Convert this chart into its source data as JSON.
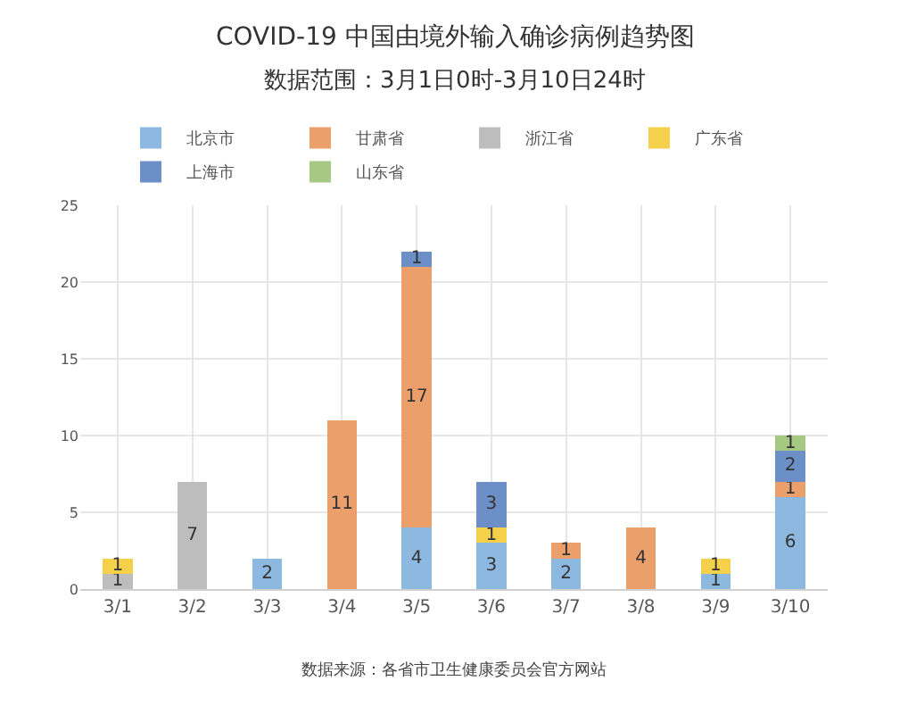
{
  "chart_data": {
    "type": "bar",
    "stacked": true,
    "title": "COVID-19 中国由境外输入确诊病例趋势图",
    "subtitle": "数据范围：3月1日0时-3月10日24时",
    "categories": [
      "3/1",
      "3/2",
      "3/3",
      "3/4",
      "3/5",
      "3/6",
      "3/7",
      "3/8",
      "3/9",
      "3/10"
    ],
    "series": [
      {
        "name": "北京市",
        "color": "#8db8df",
        "values": [
          null,
          null,
          2,
          null,
          4,
          3,
          2,
          null,
          1,
          6
        ]
      },
      {
        "name": "甘肃省",
        "color": "#eba06c",
        "values": [
          null,
          null,
          null,
          11,
          17,
          null,
          1,
          4,
          null,
          1
        ]
      },
      {
        "name": "浙江省",
        "color": "#bdbdbd",
        "values": [
          1,
          7,
          null,
          null,
          null,
          null,
          null,
          null,
          null,
          null
        ]
      },
      {
        "name": "广东省",
        "color": "#f5d04a",
        "values": [
          1,
          null,
          null,
          null,
          null,
          1,
          null,
          null,
          1,
          null
        ]
      },
      {
        "name": "上海市",
        "color": "#6d8fc7",
        "values": [
          null,
          null,
          null,
          null,
          1,
          3,
          null,
          null,
          null,
          2
        ]
      },
      {
        "name": "山东省",
        "color": "#a5c882",
        "values": [
          null,
          null,
          null,
          null,
          null,
          null,
          null,
          null,
          null,
          1
        ]
      }
    ],
    "ylim": [
      0,
      25
    ],
    "yticks": [
      0,
      5,
      10,
      15,
      20,
      25
    ],
    "grid": true,
    "legend": "top",
    "data_labels": true,
    "annotations": [
      "数据来源：各省市卫生健康委员会官方网站"
    ]
  }
}
